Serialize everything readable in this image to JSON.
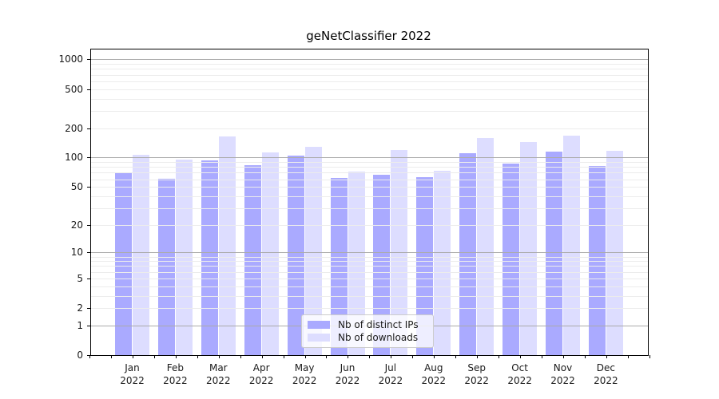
{
  "chart_data": {
    "type": "bar",
    "title": "geNetClassifier 2022",
    "year": "2022",
    "categories": [
      "Jan",
      "Feb",
      "Mar",
      "Apr",
      "May",
      "Jun",
      "Jul",
      "Aug",
      "Sep",
      "Oct",
      "Nov",
      "Dec"
    ],
    "series": [
      {
        "name": "Nb of distinct IPs",
        "color": "#aaaaff",
        "values": [
          71,
          61,
          94,
          84,
          105,
          62,
          66,
          63,
          110,
          87,
          115,
          82
        ]
      },
      {
        "name": "Nb of downloads",
        "color": "#ddddff",
        "values": [
          107,
          96,
          164,
          113,
          130,
          72,
          120,
          73,
          157,
          143,
          166,
          118
        ]
      }
    ],
    "xlabel": "",
    "ylabel": "",
    "yscale": "log1p",
    "ytick_labels": [
      "1000",
      "500",
      "200",
      "100",
      "50",
      "20",
      "10",
      "5",
      "2",
      "1",
      "0"
    ],
    "ytick_values": [
      1000,
      500,
      200,
      100,
      50,
      20,
      10,
      5,
      2,
      1,
      0
    ],
    "ylim": [
      0,
      1300
    ],
    "grid": "horizontal: minor lines at 2-9 of each decade, major lines at 1, 10, 100, 1000",
    "legend_position": "lower center"
  },
  "colors": {
    "bar_distinct_ips": "#aaaaff",
    "bar_downloads": "#ddddff",
    "major_grid": "#ababab",
    "minor_grid": "#ececec",
    "spine": "#000000",
    "text": "#1a1a1a",
    "legend_border": "#cccccc",
    "legend_background": "rgba(255,255,255,0.8)"
  }
}
